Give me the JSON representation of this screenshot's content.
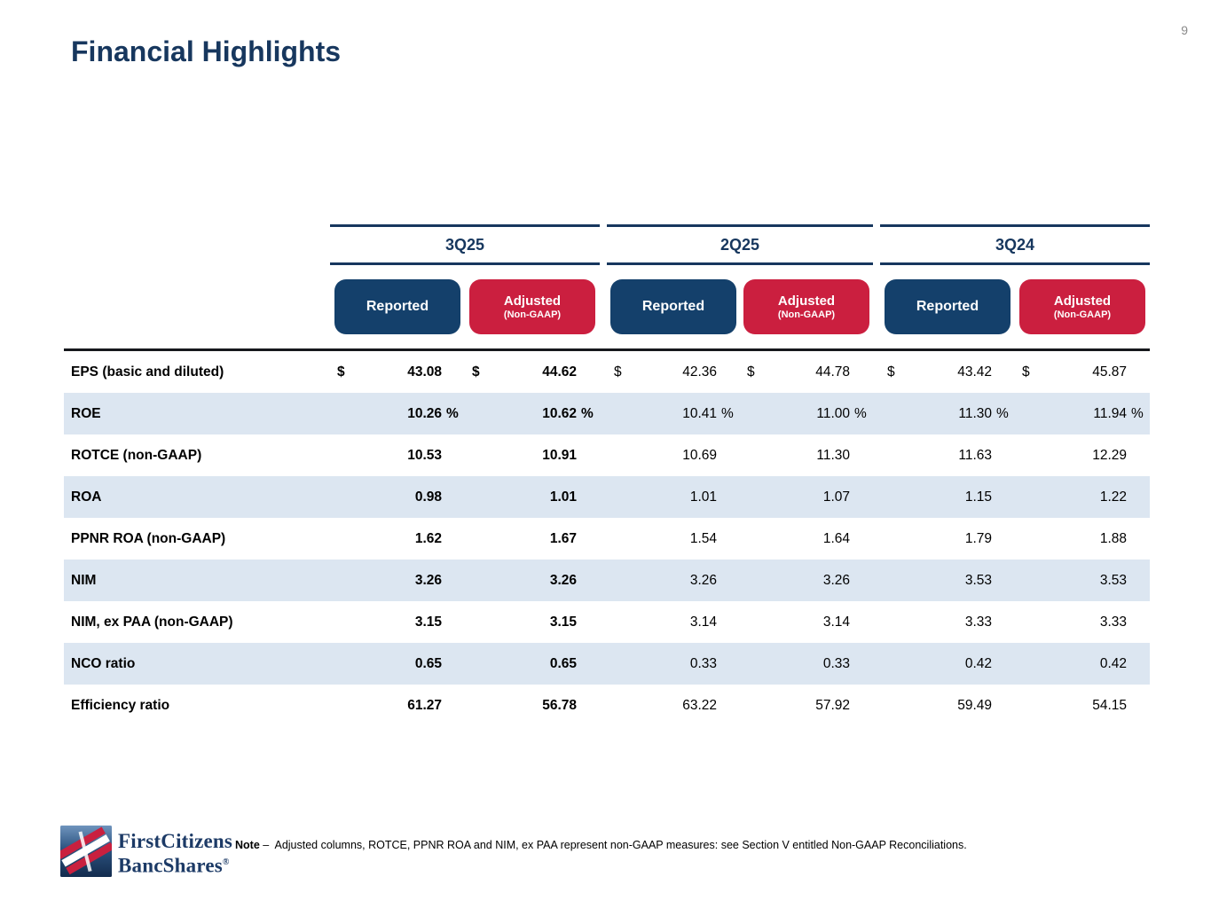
{
  "page": {
    "number": "9",
    "title": "Financial Highlights"
  },
  "colors": {
    "navy": "#17375e",
    "pill_navy": "#14406b",
    "pill_red": "#cb1f3f",
    "row_stripe": "#dce6f1"
  },
  "table": {
    "currency_symbol": "$",
    "percent_symbol": "%",
    "groups": [
      {
        "label": "3Q25"
      },
      {
        "label": "2Q25"
      },
      {
        "label": "3Q24"
      }
    ],
    "col_headers": {
      "reported": "Reported",
      "adjusted": "Adjusted",
      "adjusted_sub": "(Non-GAAP)"
    },
    "rows": [
      {
        "label": "EPS (basic and diluted)",
        "dollar": true,
        "pct": false,
        "values": [
          "43.08",
          "44.62",
          "42.36",
          "44.78",
          "43.42",
          "45.87"
        ]
      },
      {
        "label": "ROE",
        "dollar": false,
        "pct": true,
        "values": [
          "10.26",
          "10.62",
          "10.41",
          "11.00",
          "11.30",
          "11.94"
        ]
      },
      {
        "label": "ROTCE (non-GAAP)",
        "dollar": false,
        "pct": false,
        "values": [
          "10.53",
          "10.91",
          "10.69",
          "11.30",
          "11.63",
          "12.29"
        ]
      },
      {
        "label": "ROA",
        "dollar": false,
        "pct": false,
        "values": [
          "0.98",
          "1.01",
          "1.01",
          "1.07",
          "1.15",
          "1.22"
        ]
      },
      {
        "label": "PPNR ROA (non-GAAP)",
        "dollar": false,
        "pct": false,
        "values": [
          "1.62",
          "1.67",
          "1.54",
          "1.64",
          "1.79",
          "1.88"
        ]
      },
      {
        "label": "NIM",
        "dollar": false,
        "pct": false,
        "values": [
          "3.26",
          "3.26",
          "3.26",
          "3.26",
          "3.53",
          "3.53"
        ]
      },
      {
        "label": "NIM, ex PAA (non-GAAP)",
        "dollar": false,
        "pct": false,
        "values": [
          "3.15",
          "3.15",
          "3.14",
          "3.14",
          "3.33",
          "3.33"
        ]
      },
      {
        "label": "NCO ratio",
        "dollar": false,
        "pct": false,
        "values": [
          "0.65",
          "0.65",
          "0.33",
          "0.33",
          "0.42",
          "0.42"
        ]
      },
      {
        "label": "Efficiency ratio",
        "dollar": false,
        "pct": false,
        "values": [
          "61.27",
          "56.78",
          "63.22",
          "57.92",
          "59.49",
          "54.15"
        ]
      }
    ]
  },
  "footer": {
    "logo": {
      "icon": "first-citizens-flag-logo",
      "line1": "FirstCitizens",
      "line2": "BancShares",
      "registered": "®"
    },
    "note_label": "Note",
    "note_dash": "–",
    "note_text": "Adjusted columns, ROTCE, PPNR ROA and NIM, ex PAA represent non-GAAP measures: see Section V entitled Non-GAAP Reconciliations."
  }
}
